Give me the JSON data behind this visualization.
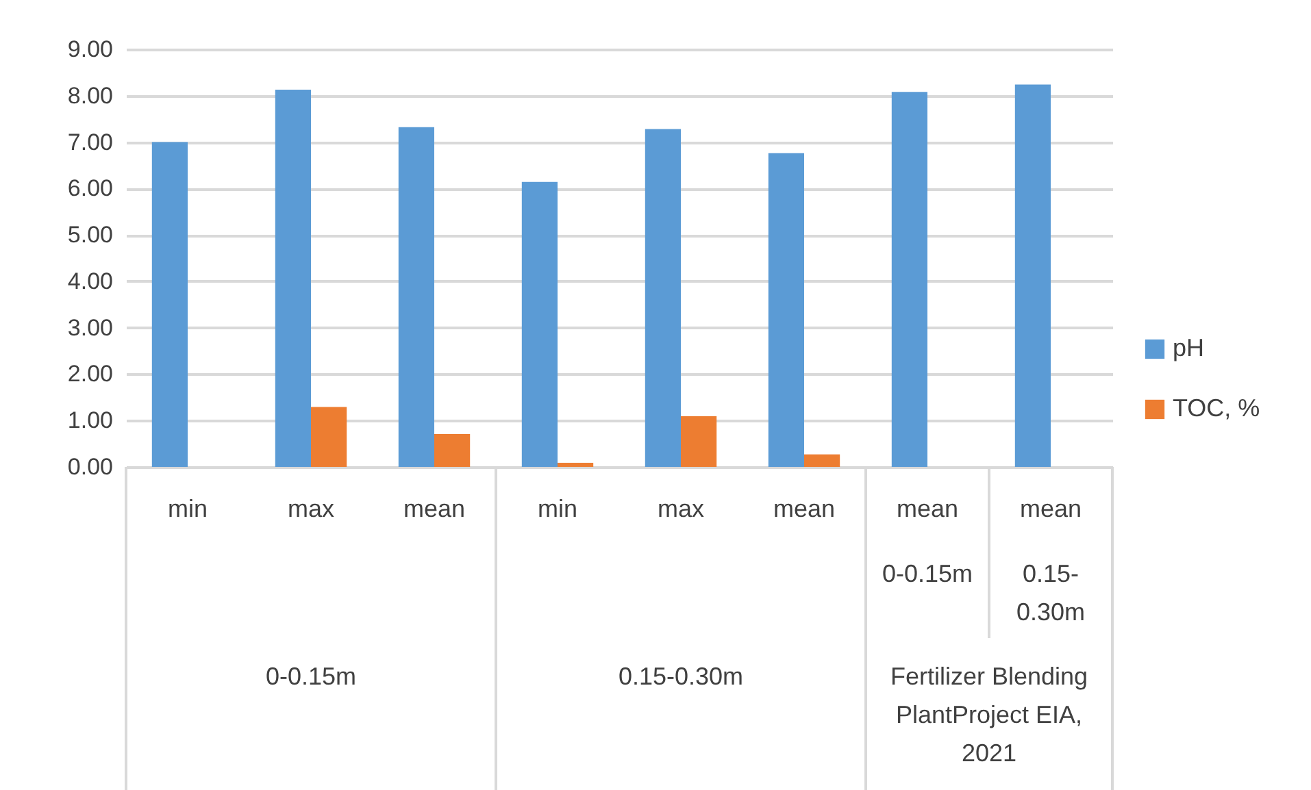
{
  "chart_data": {
    "type": "bar",
    "categories": [
      "min",
      "max",
      "mean",
      "min",
      "max",
      "mean",
      "mean",
      "mean"
    ],
    "series": [
      {
        "name": "pH",
        "color": "#5b9bd5",
        "values": [
          7.0,
          8.13,
          7.32,
          6.14,
          7.28,
          6.76,
          8.08,
          8.24
        ]
      },
      {
        "name": "TOC, %",
        "color": "#ed7d31",
        "values": [
          null,
          1.29,
          0.71,
          0.09,
          1.09,
          0.27,
          null,
          null
        ]
      }
    ],
    "ylim": [
      0,
      9
    ],
    "yticks": [
      {
        "value": 0,
        "label": "0.00"
      },
      {
        "value": 1,
        "label": "1.00"
      },
      {
        "value": 2,
        "label": "2.00"
      },
      {
        "value": 3,
        "label": "3.00"
      },
      {
        "value": 4,
        "label": "4.00"
      },
      {
        "value": 5,
        "label": "5.00"
      },
      {
        "value": 6,
        "label": "6.00"
      },
      {
        "value": 7,
        "label": "7.00"
      },
      {
        "value": 8,
        "label": "8.00"
      },
      {
        "value": 9,
        "label": "9.00"
      }
    ],
    "grid": "y",
    "legend": "right",
    "annotations": [
      "0-0.15m",
      "0.15-0.30m",
      "0-0.15m",
      "0.15-0.30m",
      "Fertilizer Blending PlantProject EIA, 2021"
    ]
  }
}
